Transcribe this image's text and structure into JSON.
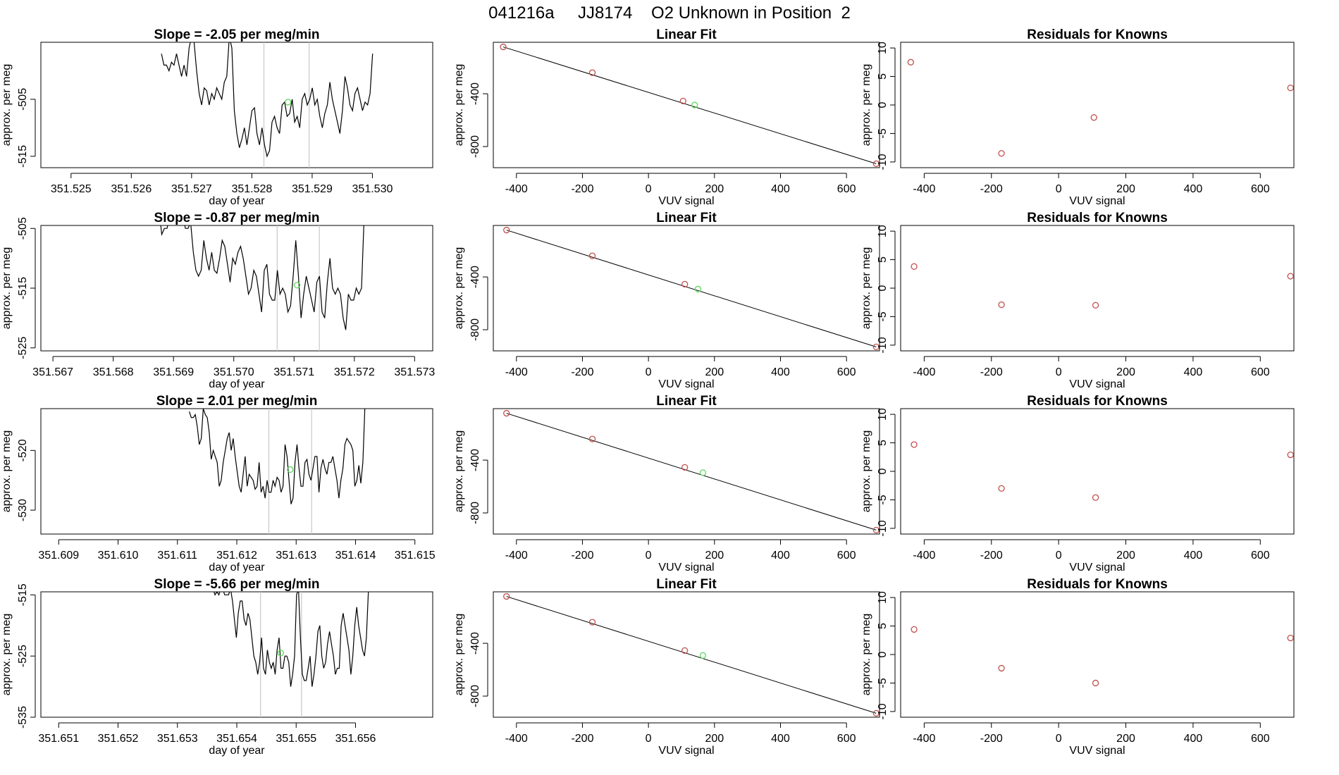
{
  "figure_title": "041216a     JJ8174    O2 Unknown in Position  2",
  "chart_data": [
    {
      "type": "line",
      "title": "Slope =  -2.05  per meg/min",
      "xlabel": "day of year",
      "ylabel": "approx. per meg",
      "xlim": [
        351.5245,
        351.531
      ],
      "ylim": [
        -517,
        -495
      ],
      "xticks": [
        351.525,
        351.526,
        351.527,
        351.528,
        351.529,
        351.53
      ],
      "xtick_labels": [
        "351.525",
        "351.526",
        "351.527",
        "351.528",
        "351.529",
        "351.530"
      ],
      "yticks": [
        -505,
        -515
      ],
      "ytick_labels": [
        "-505",
        "-515"
      ],
      "x_start": 351.5265,
      "x_step": 4.17e-05,
      "values": [
        -497,
        -499,
        -499,
        -500,
        -498.5,
        -499,
        -497,
        -499,
        -501,
        -499,
        -501,
        -496,
        -494,
        -495,
        -500,
        -504,
        -506,
        -503,
        -503.5,
        -506,
        -504,
        -505,
        -503,
        -504,
        -505,
        -502,
        -501,
        -494,
        -496,
        -507,
        -511,
        -513.5,
        -512,
        -510,
        -513,
        -510,
        -507,
        -506.5,
        -511,
        -513,
        -510,
        -513,
        -515,
        -514,
        -509,
        -508,
        -510,
        -511,
        -506,
        -505.5,
        -508,
        -507.5,
        -505,
        -509,
        -508,
        -510,
        -505,
        -504,
        -506,
        -505,
        -503,
        -506,
        -505,
        -508,
        -510,
        -507.5,
        -506,
        -502,
        -505,
        -507,
        -509,
        -511,
        -507,
        -501,
        -503,
        -506,
        -507,
        -504,
        -503,
        -505,
        -507,
        -505.5,
        -506,
        -504,
        -497
      ],
      "vlines": [
        351.5282,
        351.52895
      ],
      "unknown_point": [
        351.5286,
        -505.5
      ]
    },
    {
      "type": "scatter",
      "title": "Linear Fit",
      "xlabel": "VUV signal",
      "ylabel": "approx. per meg",
      "xlim": [
        -470,
        700
      ],
      "ylim": [
        -960,
        -10
      ],
      "xticks": [
        -400,
        -200,
        0,
        200,
        400,
        600
      ],
      "xtick_labels": [
        "-400",
        "-200",
        "0",
        "200",
        "400",
        "600"
      ],
      "yticks": [
        -400,
        -800
      ],
      "ytick_labels": [
        "-400",
        "-800"
      ],
      "line": [
        [
          -440,
          -45
        ],
        [
          690,
          -930
        ]
      ],
      "known_points": [
        [
          -440,
          -45
        ],
        [
          -170,
          -240
        ],
        [
          105,
          -455
        ],
        [
          690,
          -930
        ]
      ],
      "unknown_point": [
        140,
        -485
      ]
    },
    {
      "type": "scatter",
      "title": "Residuals for Knowns",
      "xlabel": "VUV signal",
      "ylabel": "approx. per meg",
      "xlim": [
        -470,
        700
      ],
      "ylim": [
        -11,
        11
      ],
      "xticks": [
        -400,
        -200,
        0,
        200,
        400,
        600
      ],
      "xtick_labels": [
        "-400",
        "-200",
        "0",
        "200",
        "400",
        "600"
      ],
      "yticks": [
        10,
        5,
        0,
        -5,
        -10
      ],
      "ytick_labels": [
        "10",
        "5",
        "0",
        "-5",
        "-10"
      ],
      "known_points": [
        [
          -440,
          7.5
        ],
        [
          -170,
          -8.5
        ],
        [
          105,
          -2.2
        ],
        [
          690,
          3.0
        ]
      ]
    },
    {
      "type": "line",
      "title": "Slope =  -0.87  per meg/min",
      "xlabel": "day of year",
      "ylabel": "approx. per meg",
      "xlim": [
        351.5668,
        351.5733
      ],
      "ylim": [
        -525.5,
        -504.5
      ],
      "xticks": [
        351.567,
        351.568,
        351.569,
        351.57,
        351.571,
        351.572,
        351.573
      ],
      "xtick_labels": [
        "351.567",
        "351.568",
        "351.569",
        "351.570",
        "351.571",
        "351.572",
        "351.573"
      ],
      "yticks": [
        -505,
        -515,
        -525
      ],
      "ytick_labels": [
        "-505",
        "-515",
        "-525"
      ],
      "x_start": 351.5685,
      "x_step": 4.36e-05,
      "values": [
        -502,
        -503,
        -504,
        -504,
        -503,
        -502.5,
        -502,
        -506,
        -505,
        -505,
        -503,
        -503,
        -503,
        -502,
        -502,
        -503,
        -505,
        -505,
        -504,
        -509,
        -512,
        -513,
        -512,
        -507,
        -510,
        -512,
        -509,
        -512,
        -512.5,
        -510,
        -507,
        -508,
        -511,
        -514,
        -510,
        -511,
        -509,
        -508,
        -510,
        -513,
        -516,
        -515,
        -512,
        -513,
        -516,
        -519,
        -512,
        -511,
        -516,
        -517,
        -517,
        -512,
        -516,
        -515,
        -516,
        -519,
        -518,
        -513,
        -507,
        -513,
        -520,
        -516,
        -513,
        -515,
        -517,
        -519,
        -514,
        -513,
        -519,
        -520,
        -514,
        -510,
        -515,
        -516,
        -515,
        -516,
        -520,
        -522,
        -516,
        -517,
        -517,
        -515,
        -516,
        -515,
        -503
      ],
      "vlines": [
        351.57072,
        351.57142
      ],
      "unknown_point": [
        351.57105,
        -514.5
      ]
    },
    {
      "type": "scatter",
      "title": "Linear Fit",
      "xlabel": "VUV signal",
      "ylabel": "approx. per meg",
      "xlim": [
        -470,
        700
      ],
      "ylim": [
        -960,
        -10
      ],
      "xticks": [
        -400,
        -200,
        0,
        200,
        400,
        600
      ],
      "xtick_labels": [
        "-400",
        "-200",
        "0",
        "200",
        "400",
        "600"
      ],
      "yticks": [
        -400,
        -800
      ],
      "ytick_labels": [
        "-400",
        "-800"
      ],
      "line": [
        [
          -430,
          -45
        ],
        [
          690,
          -930
        ]
      ],
      "known_points": [
        [
          -430,
          -45
        ],
        [
          -170,
          -240
        ],
        [
          110,
          -455
        ],
        [
          690,
          -930
        ]
      ],
      "unknown_point": [
        150,
        -492
      ]
    },
    {
      "type": "scatter",
      "title": "Residuals for Knowns",
      "xlabel": "VUV signal",
      "ylabel": "approx. per meg",
      "xlim": [
        -470,
        700
      ],
      "ylim": [
        -11,
        11
      ],
      "xticks": [
        -400,
        -200,
        0,
        200,
        400,
        600
      ],
      "xtick_labels": [
        "-400",
        "-200",
        "0",
        "200",
        "400",
        "600"
      ],
      "yticks": [
        10,
        5,
        0,
        -5,
        -10
      ],
      "ytick_labels": [
        "10",
        "5",
        "0",
        "-5",
        "-10"
      ],
      "known_points": [
        [
          -430,
          3.8
        ],
        [
          -170,
          -2.9
        ],
        [
          110,
          -3.0
        ],
        [
          690,
          2.1
        ]
      ]
    },
    {
      "type": "line",
      "title": "Slope =  2.01  per meg/min",
      "xlabel": "day of year",
      "ylabel": "approx. per meg",
      "xlim": [
        351.6087,
        351.6153
      ],
      "ylim": [
        -534,
        -513
      ],
      "xticks": [
        351.609,
        351.61,
        351.611,
        351.612,
        351.613,
        351.614,
        351.615
      ],
      "xtick_labels": [
        "351.609",
        "351.610",
        "351.611",
        "351.612",
        "351.613",
        "351.614",
        "351.615"
      ],
      "yticks": [
        -520,
        -530
      ],
      "ytick_labels": [
        "-520",
        "-530"
      ],
      "x_start": 351.6112,
      "x_step": 3.36e-05,
      "values": [
        -513.5,
        -514.5,
        -514.5,
        -514,
        -516,
        -519,
        -518,
        -513,
        -514,
        -514.5,
        -517,
        -521.5,
        -520,
        -521,
        -522,
        -526,
        -525,
        -522,
        -520,
        -518,
        -517,
        -520,
        -518,
        -521,
        -523.5,
        -526,
        -527,
        -524,
        -521,
        -526,
        -524,
        -524.5,
        -525,
        -526.5,
        -526,
        -522,
        -527,
        -526,
        -528,
        -525,
        -527,
        -527,
        -525,
        -526,
        -524.5,
        -525,
        -527,
        -526,
        -519,
        -521,
        -525,
        -529,
        -528,
        -522,
        -519,
        -523,
        -526,
        -526,
        -522,
        -521.5,
        -524,
        -525,
        -523,
        -521,
        -521,
        -527,
        -523,
        -521.5,
        -523,
        -524,
        -522,
        -522,
        -521,
        -523,
        -525,
        -528,
        -525,
        -523,
        -519,
        -518,
        -518.5,
        -519,
        -520,
        -526,
        -525,
        -522.5,
        -525.5,
        -522,
        -513
      ],
      "vlines": [
        351.61254,
        351.61326
      ],
      "unknown_point": [
        351.6129,
        -523.2
      ]
    },
    {
      "type": "scatter",
      "title": "Linear Fit",
      "xlabel": "VUV signal",
      "ylabel": "approx. per meg",
      "xlim": [
        -470,
        700
      ],
      "ylim": [
        -960,
        -10
      ],
      "xticks": [
        -400,
        -200,
        0,
        200,
        400,
        600
      ],
      "xtick_labels": [
        "-400",
        "-200",
        "0",
        "200",
        "400",
        "600"
      ],
      "yticks": [
        -400,
        -800
      ],
      "ytick_labels": [
        "-400",
        "-800"
      ],
      "line": [
        [
          -430,
          -45
        ],
        [
          690,
          -930
        ]
      ],
      "known_points": [
        [
          -430,
          -45
        ],
        [
          -170,
          -240
        ],
        [
          110,
          -455
        ],
        [
          690,
          -930
        ]
      ],
      "unknown_point": [
        165,
        -495
      ]
    },
    {
      "type": "scatter",
      "title": "Residuals for Knowns",
      "xlabel": "VUV signal",
      "ylabel": "approx. per meg",
      "xlim": [
        -470,
        700
      ],
      "ylim": [
        -11,
        11
      ],
      "xticks": [
        -400,
        -200,
        0,
        200,
        400,
        600
      ],
      "xtick_labels": [
        "-400",
        "-200",
        "0",
        "200",
        "400",
        "600"
      ],
      "yticks": [
        10,
        5,
        0,
        -5,
        -10
      ],
      "ytick_labels": [
        "10",
        "5",
        "0",
        "-5",
        "-10"
      ],
      "known_points": [
        [
          -430,
          4.7
        ],
        [
          -170,
          -3.0
        ],
        [
          110,
          -4.6
        ],
        [
          690,
          2.9
        ]
      ]
    },
    {
      "type": "line",
      "title": "Slope =  -5.66  per meg/min",
      "xlabel": "day of year",
      "ylabel": "approx. per meg",
      "xlim": [
        351.6507,
        351.6573
      ],
      "ylim": [
        -535,
        -514.5
      ],
      "xticks": [
        351.651,
        351.652,
        351.653,
        351.654,
        351.655,
        351.656
      ],
      "xtick_labels": [
        "351.651",
        "351.652",
        "351.653",
        "351.654",
        "351.655",
        "351.656"
      ],
      "yticks": [
        -515,
        -525,
        -535
      ],
      "ytick_labels": [
        "-515",
        "-525",
        "-535"
      ],
      "x_start": 351.6536,
      "x_step": 3.27e-05,
      "values": [
        -514,
        -515,
        -514.5,
        -515,
        -514,
        -514,
        -515,
        -515,
        -515,
        -514,
        -516,
        -519,
        -522,
        -518,
        -516,
        -516,
        -519,
        -520,
        -518,
        -519,
        -522,
        -525,
        -526,
        -528,
        -526,
        -522,
        -527,
        -528,
        -524,
        -526,
        -527,
        -526,
        -528,
        -524,
        -522,
        -527,
        -527,
        -525,
        -525,
        -526,
        -530,
        -528,
        -525,
        -515,
        -514,
        -522,
        -528,
        -529,
        -529,
        -527,
        -525,
        -530,
        -528,
        -525,
        -521,
        -520,
        -525,
        -527,
        -526,
        -523,
        -521,
        -523,
        -525,
        -528,
        -527,
        -527,
        -520,
        -518,
        -520,
        -522,
        -524,
        -528,
        -525,
        -520,
        -517,
        -520,
        -522,
        -524,
        -525,
        -522,
        -514.5
      ],
      "vlines": [
        351.6544,
        351.65509
      ],
      "unknown_point": [
        351.65474,
        -524.5
      ]
    },
    {
      "type": "scatter",
      "title": "Linear Fit",
      "xlabel": "VUV signal",
      "ylabel": "approx. per meg",
      "xlim": [
        -470,
        700
      ],
      "ylim": [
        -960,
        -10
      ],
      "xticks": [
        -400,
        -200,
        0,
        200,
        400,
        600
      ],
      "xtick_labels": [
        "-400",
        "-200",
        "0",
        "200",
        "400",
        "600"
      ],
      "yticks": [
        -400,
        -800
      ],
      "ytick_labels": [
        "-400",
        "-800"
      ],
      "line": [
        [
          -430,
          -45
        ],
        [
          690,
          -930
        ]
      ],
      "known_points": [
        [
          -430,
          -45
        ],
        [
          -170,
          -240
        ],
        [
          110,
          -455
        ],
        [
          690,
          -930
        ]
      ],
      "unknown_point": [
        165,
        -492
      ]
    },
    {
      "type": "scatter",
      "title": "Residuals for Knowns",
      "xlabel": "VUV signal",
      "ylabel": "approx. per meg",
      "xlim": [
        -470,
        700
      ],
      "ylim": [
        -11,
        11
      ],
      "xticks": [
        -400,
        -200,
        0,
        200,
        400,
        600
      ],
      "xtick_labels": [
        "-400",
        "-200",
        "0",
        "200",
        "400",
        "600"
      ],
      "yticks": [
        10,
        5,
        0,
        -5,
        -10
      ],
      "ytick_labels": [
        "10",
        "5",
        "0",
        "-5",
        "-10"
      ],
      "known_points": [
        [
          -430,
          4.4
        ],
        [
          -170,
          -2.4
        ],
        [
          110,
          -5.0
        ],
        [
          690,
          2.9
        ]
      ]
    }
  ],
  "colors": {
    "known_point": "#c0504d",
    "unknown_point": "#5bd95b",
    "line": "#000000",
    "vline": "#c8c8c8"
  }
}
